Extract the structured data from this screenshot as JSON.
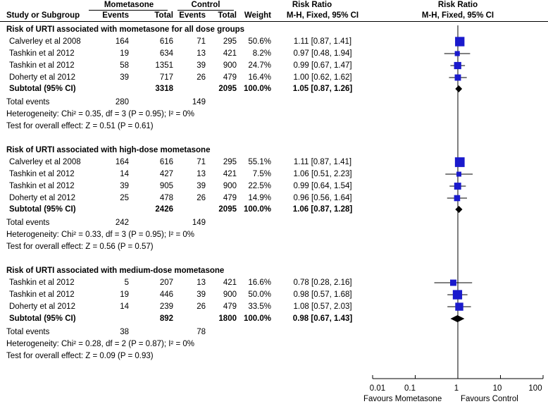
{
  "header": {
    "group1": "Mometasone",
    "group2": "Control",
    "col_study": "Study or Subgroup",
    "col_events1": "Events",
    "col_total1": "Total",
    "col_events2": "Events",
    "col_total2": "Total",
    "col_weight": "Weight",
    "col_rr_title": "Risk Ratio",
    "col_rr_method": "M-H, Fixed, 95% CI",
    "col_plot_title": "Risk Ratio",
    "col_plot_method": "M-H, Fixed, 95% CI"
  },
  "groups": [
    {
      "title": "Risk of URTI associated with mometasone for all dose groups",
      "studies": [
        {
          "name": "Calverley et al 2008",
          "e1": "164",
          "t1": "616",
          "e2": "71",
          "t2": "295",
          "weight": "50.6%",
          "ci": "1.11 [0.87, 1.41]"
        },
        {
          "name": "Tashkin et al 2012",
          "e1": "19",
          "t1": "634",
          "e2": "13",
          "t2": "421",
          "weight": "8.2%",
          "ci": "0.97 [0.48, 1.94]"
        },
        {
          "name": "Tashkin et al 2012",
          "e1": "58",
          "t1": "1351",
          "e2": "39",
          "t2": "900",
          "weight": "24.7%",
          "ci": "0.99 [0.67, 1.47]"
        },
        {
          "name": "Doherty et al 2012",
          "e1": "39",
          "t1": "717",
          "e2": "26",
          "t2": "479",
          "weight": "16.4%",
          "ci": "1.00 [0.62, 1.62]"
        }
      ],
      "subtotal": {
        "label": "Subtotal (95% CI)",
        "t1": "3318",
        "t2": "2095",
        "weight": "100.0%",
        "ci": "1.05 [0.87, 1.26]"
      },
      "total_events": {
        "label": "Total events",
        "e1": "280",
        "e2": "149"
      },
      "heterogeneity": "Heterogeneity: Chi² = 0.35, df = 3 (P = 0.95); I² = 0%",
      "overall": "Test for overall effect: Z = 0.51 (P = 0.61)"
    },
    {
      "title": "Risk of URTI associated with high-dose mometasone",
      "studies": [
        {
          "name": "Calverley et al 2008",
          "e1": "164",
          "t1": "616",
          "e2": "71",
          "t2": "295",
          "weight": "55.1%",
          "ci": "1.11 [0.87, 1.41]"
        },
        {
          "name": "Tashkin et al 2012",
          "e1": "14",
          "t1": "427",
          "e2": "13",
          "t2": "421",
          "weight": "7.5%",
          "ci": "1.06 [0.51, 2.23]"
        },
        {
          "name": "Tashkin et al 2012",
          "e1": "39",
          "t1": "905",
          "e2": "39",
          "t2": "900",
          "weight": "22.5%",
          "ci": "0.99 [0.64, 1.54]"
        },
        {
          "name": "Doherty et al 2012",
          "e1": "25",
          "t1": "478",
          "e2": "26",
          "t2": "479",
          "weight": "14.9%",
          "ci": "0.96 [0.56, 1.64]"
        }
      ],
      "subtotal": {
        "label": "Subtotal (95% CI)",
        "t1": "2426",
        "t2": "2095",
        "weight": "100.0%",
        "ci": "1.06 [0.87, 1.28]"
      },
      "total_events": {
        "label": "Total events",
        "e1": "242",
        "e2": "149"
      },
      "heterogeneity": "Heterogeneity: Chi² = 0.33, df = 3 (P = 0.95); I² = 0%",
      "overall": "Test for overall effect: Z = 0.56 (P = 0.57)"
    },
    {
      "title": "Risk of URTI associated with medium-dose mometasone",
      "studies": [
        {
          "name": "Tashkin et al 2012",
          "e1": "5",
          "t1": "207",
          "e2": "13",
          "t2": "421",
          "weight": "16.6%",
          "ci": "0.78 [0.28, 2.16]"
        },
        {
          "name": "Tashkin et al 2012",
          "e1": "19",
          "t1": "446",
          "e2": "39",
          "t2": "900",
          "weight": "50.0%",
          "ci": "0.98 [0.57, 1.68]"
        },
        {
          "name": "Doherty et al 2012",
          "e1": "14",
          "t1": "239",
          "e2": "26",
          "t2": "479",
          "weight": "33.5%",
          "ci": "1.08 [0.57, 2.03]"
        }
      ],
      "subtotal": {
        "label": "Subtotal (95% CI)",
        "t1": "892",
        "t2": "1800",
        "weight": "100.0%",
        "ci": "0.98 [0.67, 1.43]"
      },
      "total_events": {
        "label": "Total events",
        "e1": "38",
        "e2": "78"
      },
      "heterogeneity": "Heterogeneity: Chi² = 0.28, df = 2 (P = 0.87); I² = 0%",
      "overall": "Test for overall effect: Z = 0.09 (P = 0.93)"
    }
  ],
  "axis": {
    "ticks": [
      "0.01",
      "0.1",
      "1",
      "10",
      "100"
    ],
    "favours_left": "Favours Mometasone",
    "favours_right": "Favours Control"
  },
  "chart_data": {
    "type": "forest",
    "title": "Risk Ratio M-H, Fixed, 95% CI",
    "scale": "log",
    "xlim": [
      0.01,
      100
    ],
    "reference_line": 1,
    "colors": {
      "marker": "#1a1acc",
      "diamond": "#000000",
      "line": "#000000"
    },
    "series": [
      {
        "name": "Risk of URTI associated with mometasone for all dose groups",
        "points": [
          {
            "rr": 1.11,
            "lo": 0.87,
            "hi": 1.41,
            "weight": 50.6
          },
          {
            "rr": 0.97,
            "lo": 0.48,
            "hi": 1.94,
            "weight": 8.2
          },
          {
            "rr": 0.99,
            "lo": 0.67,
            "hi": 1.47,
            "weight": 24.7
          },
          {
            "rr": 1.0,
            "lo": 0.62,
            "hi": 1.62,
            "weight": 16.4
          }
        ],
        "subtotal": {
          "rr": 1.05,
          "lo": 0.87,
          "hi": 1.26
        }
      },
      {
        "name": "Risk of URTI associated with high-dose mometasone",
        "points": [
          {
            "rr": 1.11,
            "lo": 0.87,
            "hi": 1.41,
            "weight": 55.1
          },
          {
            "rr": 1.06,
            "lo": 0.51,
            "hi": 2.23,
            "weight": 7.5
          },
          {
            "rr": 0.99,
            "lo": 0.64,
            "hi": 1.54,
            "weight": 22.5
          },
          {
            "rr": 0.96,
            "lo": 0.56,
            "hi": 1.64,
            "weight": 14.9
          }
        ],
        "subtotal": {
          "rr": 1.06,
          "lo": 0.87,
          "hi": 1.28
        }
      },
      {
        "name": "Risk of URTI associated with medium-dose mometasone",
        "points": [
          {
            "rr": 0.78,
            "lo": 0.28,
            "hi": 2.16,
            "weight": 16.6
          },
          {
            "rr": 0.98,
            "lo": 0.57,
            "hi": 1.68,
            "weight": 50.0
          },
          {
            "rr": 1.08,
            "lo": 0.57,
            "hi": 2.03,
            "weight": 33.5
          }
        ],
        "subtotal": {
          "rr": 0.98,
          "lo": 0.67,
          "hi": 1.43
        }
      }
    ]
  }
}
